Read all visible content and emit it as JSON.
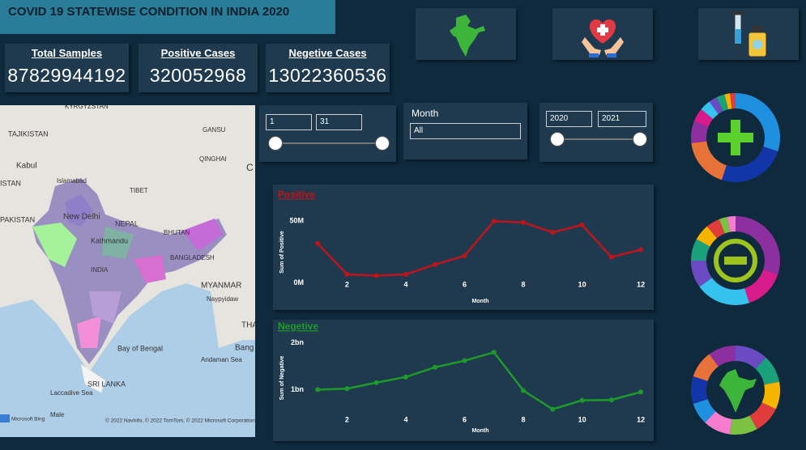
{
  "header": {
    "title": "COVID 19 STATEWISE CONDITION IN INDIA 2020"
  },
  "kpis": [
    {
      "label": "Total Samples",
      "value": "87829944192"
    },
    {
      "label": "Positive Cases",
      "value": "320052968"
    },
    {
      "label": "Negetive Cases",
      "value": "13022360536"
    }
  ],
  "slicers": {
    "day": {
      "from": "1",
      "to": "31"
    },
    "month": {
      "label": "Month",
      "value": "All"
    },
    "year": {
      "from": "2020",
      "to": "2021"
    }
  },
  "map": {
    "labels": [
      "KYRGYZSTAN",
      "TAJIKISTAN",
      "Kabul",
      "ISTAN",
      "Islamabad",
      "PAKISTAN",
      "New Delhi",
      "NEPAL",
      "Kathmandu",
      "BHUTAN",
      "INDIA",
      "BANGLADESH",
      "MYANMAR",
      "Naypyidaw",
      "THA",
      "Bay of Bengal",
      "Bang",
      "Andaman Sea",
      "SRI LANKA",
      "Laccadive Sea",
      "Male",
      "GANSU",
      "QINGHAI",
      "TIBET",
      "C"
    ],
    "attribution": "© 2022 NavInfo, © 2022 TomTom, © 2022 Microsoft Corporation",
    "brand": "Microsoft Bing"
  },
  "chart_data": [
    {
      "type": "line",
      "title": "Positive",
      "x_label": "Month",
      "y_label": "Sum of Positive",
      "x": [
        1,
        2,
        3,
        4,
        5,
        6,
        7,
        8,
        9,
        10,
        11,
        12
      ],
      "series": [
        {
          "name": "Positive",
          "color": "#c0141c",
          "values": [
            32,
            7,
            6,
            7,
            15,
            22,
            50,
            49,
            41,
            47,
            21,
            27
          ]
        }
      ],
      "xlim": [
        0.5,
        12.3
      ],
      "xticks": [
        2,
        4,
        6,
        8,
        10,
        12
      ],
      "ylim": [
        -10,
        60
      ],
      "yticks": [
        {
          "value": 0,
          "label": "0M"
        },
        {
          "value": 50,
          "label": "50M"
        }
      ]
    },
    {
      "type": "line",
      "title": "Negetive",
      "x_label": "Month",
      "y_label": "Sum of Negative",
      "x": [
        1,
        2,
        3,
        4,
        5,
        6,
        7,
        8,
        9,
        10,
        11,
        12
      ],
      "series": [
        {
          "name": "Negetive",
          "color": "#1d9a2a",
          "values": [
            1.0,
            1.02,
            1.15,
            1.27,
            1.48,
            1.62,
            1.8,
            0.98,
            0.58,
            0.77,
            0.78,
            0.95
          ]
        }
      ],
      "xlim": [
        0.5,
        12.3
      ],
      "xticks": [
        2,
        4,
        6,
        8,
        10,
        12
      ],
      "ylim": [
        0.4,
        2.1
      ],
      "yticks": [
        {
          "value": 1,
          "label": "1bn"
        },
        {
          "value": 2,
          "label": "2bn"
        }
      ]
    }
  ]
}
